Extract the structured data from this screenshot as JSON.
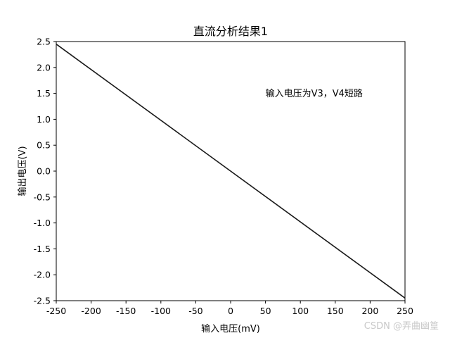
{
  "chart_data": {
    "type": "line",
    "title": "直流分析结果1",
    "xlabel": "输入电压(mV)",
    "ylabel": "输出电压(V)",
    "xlim": [
      -250,
      250
    ],
    "ylim": [
      -2.5,
      2.5
    ],
    "xticks": [
      -250,
      -200,
      -150,
      -100,
      -50,
      0,
      50,
      100,
      150,
      200,
      250
    ],
    "xtick_labels": [
      "-250",
      "-200",
      "-150",
      "-100",
      "-50",
      "0",
      "50",
      "100",
      "150",
      "200",
      "250"
    ],
    "yticks": [
      2.5,
      2.0,
      1.5,
      1.0,
      0.5,
      0.0,
      -0.5,
      -1.0,
      -1.5,
      -2.0,
      -2.5
    ],
    "ytick_labels": [
      "2.5",
      "2.0",
      "1.5",
      "1.0",
      "0.5",
      "0.0",
      "-0.5",
      "-1.0",
      "-1.5",
      "-2.0",
      "-2.5"
    ],
    "grid": false,
    "series": [
      {
        "x": [
          -250,
          250
        ],
        "y": [
          2.45,
          -2.45
        ],
        "color": "#1a1a1a"
      }
    ],
    "annotation": {
      "text": "输入电压为V3，V4短路",
      "x": 50,
      "y": 1.5
    }
  },
  "watermark": "CSDN @弄曲幽篁"
}
